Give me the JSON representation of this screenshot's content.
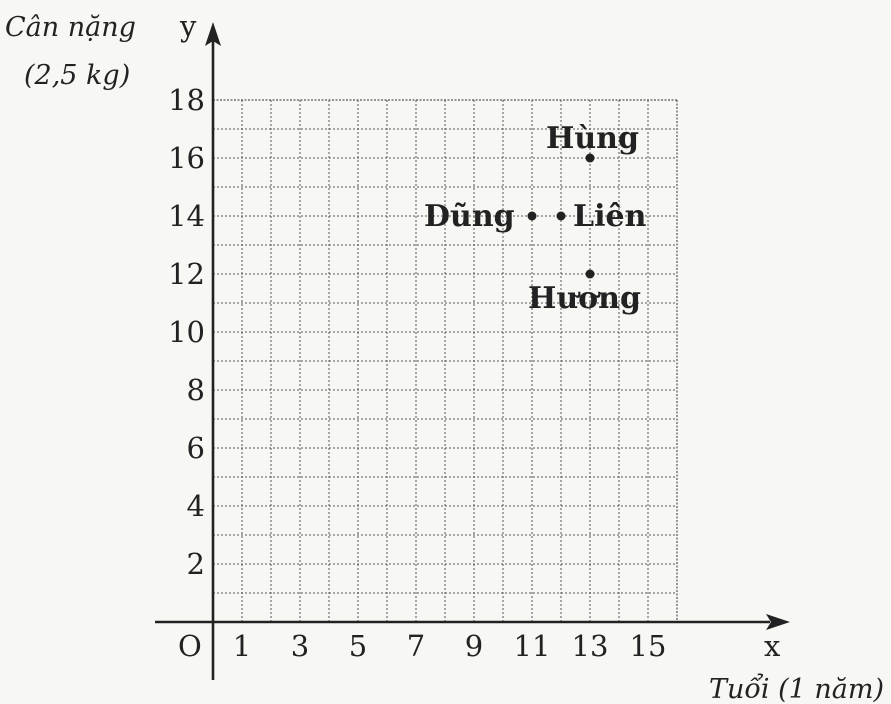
{
  "chart_data": {
    "type": "scatter",
    "ylabel": "Cân nặng",
    "ylabel_unit": "(2,5 kg)",
    "xlabel": "Tuổi (1 năm)",
    "x_axis_var": "x",
    "y_axis_var": "y",
    "origin_label": "O",
    "xlim": [
      0,
      16
    ],
    "ylim": [
      0,
      18
    ],
    "x_ticks": [
      1,
      3,
      5,
      7,
      9,
      11,
      13,
      15
    ],
    "y_ticks": [
      2,
      4,
      6,
      8,
      10,
      12,
      14,
      16,
      18
    ],
    "grid": true,
    "points": [
      {
        "label": "Hùng",
        "x": 13,
        "y": 16
      },
      {
        "label": "Dũng",
        "x": 11,
        "y": 14
      },
      {
        "label": "Liên",
        "x": 12,
        "y": 14
      },
      {
        "label": "Hương",
        "x": 13,
        "y": 12
      }
    ]
  }
}
